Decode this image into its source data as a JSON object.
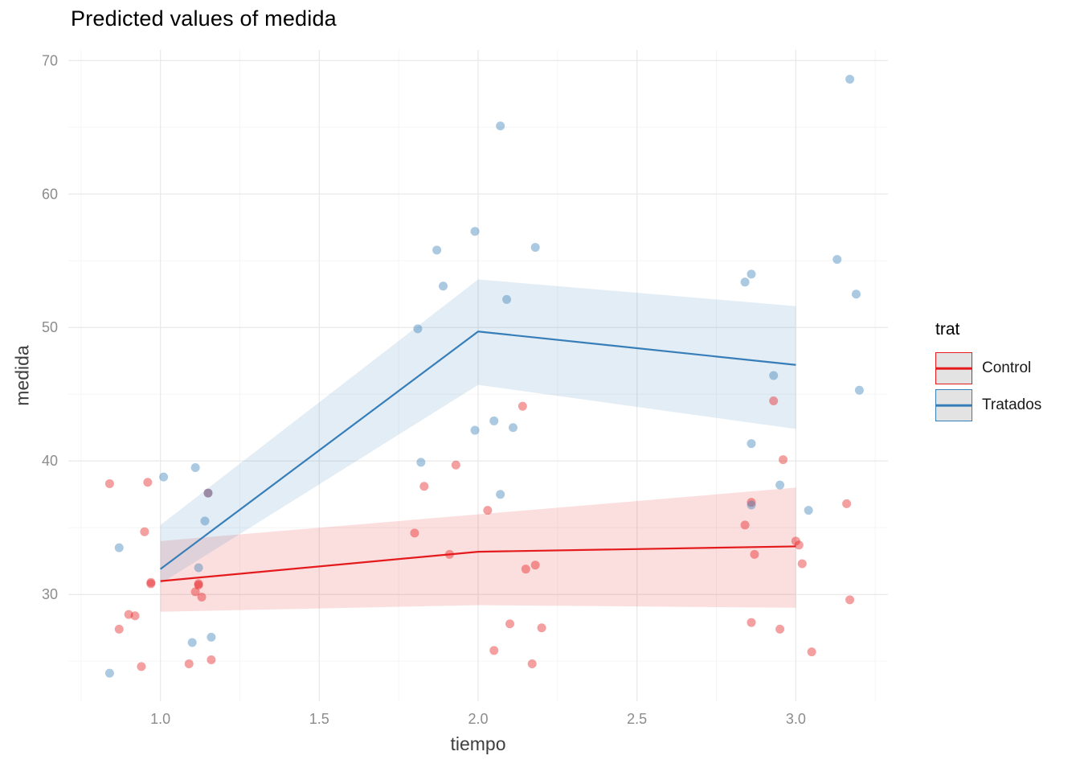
{
  "chart_data": {
    "type": "scatter",
    "title": "Predicted values of medida",
    "xlabel": "tiempo",
    "ylabel": "medida",
    "xlim": [
      0.71,
      3.29
    ],
    "ylim": [
      22,
      70.8
    ],
    "xticks": [
      {
        "value": 1.0,
        "label": "1.0"
      },
      {
        "value": 1.5,
        "label": "1.5"
      },
      {
        "value": 2.0,
        "label": "2.0"
      },
      {
        "value": 2.5,
        "label": "2.5"
      },
      {
        "value": 3.0,
        "label": "3.0"
      }
    ],
    "yticks": [
      {
        "value": 30,
        "label": "30"
      },
      {
        "value": 40,
        "label": "40"
      },
      {
        "value": 50,
        "label": "50"
      },
      {
        "value": 60,
        "label": "60"
      },
      {
        "value": 70,
        "label": "70"
      }
    ],
    "grid": {
      "major_color": "#e9e9e9",
      "minor_color": "#f5f5f5",
      "minor_x": [
        0.75,
        1.25,
        1.75,
        2.25,
        2.75,
        3.25
      ],
      "minor_y": [
        25,
        35,
        45,
        55,
        65
      ]
    },
    "legend": {
      "title": "trat",
      "position": "right",
      "entries": [
        {
          "label": "Control",
          "color": "#E41A1C"
        },
        {
          "label": "Tratados",
          "color": "#377EB8"
        }
      ]
    },
    "point_style": {
      "radius": 5.5,
      "opacity": 0.42
    },
    "line_width": 2.2,
    "ribbon_opacity": 0.14,
    "series": [
      {
        "name": "Control",
        "color": "#E41A1C",
        "line": {
          "x": [
            1.0,
            2.0,
            3.0
          ],
          "y": [
            31.0,
            33.2,
            33.6
          ]
        },
        "ribbon": {
          "x": [
            1.0,
            2.0,
            3.0
          ],
          "upper": [
            34.0,
            36.0,
            38.0
          ],
          "lower": [
            28.7,
            29.2,
            29.0
          ]
        },
        "points": [
          [
            0.84,
            38.3
          ],
          [
            0.87,
            27.4
          ],
          [
            0.9,
            28.5
          ],
          [
            0.92,
            28.4
          ],
          [
            0.94,
            24.6
          ],
          [
            0.95,
            34.7
          ],
          [
            0.96,
            38.4
          ],
          [
            0.97,
            30.8
          ],
          [
            0.97,
            30.9
          ],
          [
            1.09,
            24.8
          ],
          [
            1.11,
            30.2
          ],
          [
            1.12,
            30.7
          ],
          [
            1.12,
            30.8
          ],
          [
            1.13,
            29.8
          ],
          [
            1.15,
            37.6
          ],
          [
            1.16,
            25.1
          ],
          [
            1.8,
            34.6
          ],
          [
            1.83,
            38.1
          ],
          [
            1.91,
            33.0
          ],
          [
            1.93,
            39.7
          ],
          [
            2.03,
            36.3
          ],
          [
            2.05,
            25.8
          ],
          [
            2.1,
            27.8
          ],
          [
            2.14,
            44.1
          ],
          [
            2.15,
            31.9
          ],
          [
            2.17,
            24.8
          ],
          [
            2.18,
            32.2
          ],
          [
            2.2,
            27.5
          ],
          [
            2.84,
            35.2
          ],
          [
            2.86,
            27.9
          ],
          [
            2.86,
            36.9
          ],
          [
            2.87,
            33.0
          ],
          [
            2.93,
            44.5
          ],
          [
            2.95,
            27.4
          ],
          [
            2.96,
            40.1
          ],
          [
            3.0,
            34.0
          ],
          [
            3.01,
            33.7
          ],
          [
            3.02,
            32.3
          ],
          [
            3.05,
            25.7
          ],
          [
            3.16,
            36.8
          ],
          [
            3.17,
            29.6
          ]
        ]
      },
      {
        "name": "Tratados",
        "color": "#377EB8",
        "line": {
          "x": [
            1.0,
            2.0,
            3.0
          ],
          "y": [
            31.9,
            49.7,
            47.2
          ]
        },
        "ribbon": {
          "x": [
            1.0,
            2.0,
            3.0
          ],
          "upper": [
            35.2,
            53.6,
            51.6
          ],
          "lower": [
            30.8,
            45.7,
            42.4
          ]
        },
        "points": [
          [
            0.84,
            24.1
          ],
          [
            0.87,
            33.5
          ],
          [
            1.01,
            38.8
          ],
          [
            1.1,
            26.4
          ],
          [
            1.11,
            39.5
          ],
          [
            1.12,
            32.0
          ],
          [
            1.14,
            35.5
          ],
          [
            1.15,
            37.6
          ],
          [
            1.16,
            26.8
          ],
          [
            1.81,
            49.9
          ],
          [
            1.82,
            39.9
          ],
          [
            1.87,
            55.8
          ],
          [
            1.89,
            53.1
          ],
          [
            1.99,
            42.3
          ],
          [
            1.99,
            57.2
          ],
          [
            2.05,
            43.0
          ],
          [
            2.07,
            65.1
          ],
          [
            2.07,
            37.5
          ],
          [
            2.09,
            52.1
          ],
          [
            2.11,
            42.5
          ],
          [
            2.18,
            56.0
          ],
          [
            2.84,
            53.4
          ],
          [
            2.86,
            54.0
          ],
          [
            2.86,
            41.3
          ],
          [
            2.86,
            36.7
          ],
          [
            2.93,
            46.4
          ],
          [
            2.95,
            38.2
          ],
          [
            3.04,
            36.3
          ],
          [
            3.13,
            55.1
          ],
          [
            3.17,
            68.6
          ],
          [
            3.19,
            52.5
          ],
          [
            3.2,
            45.3
          ]
        ]
      }
    ]
  }
}
